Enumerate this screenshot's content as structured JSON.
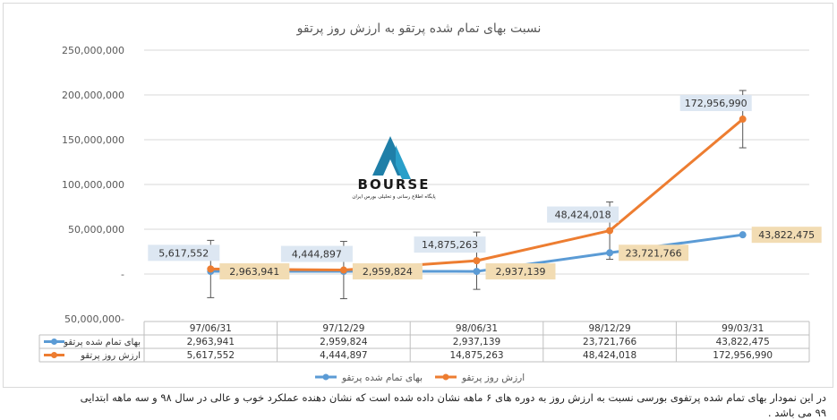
{
  "chart_data": {
    "type": "line",
    "title": "نسبت بهای تمام شده پرتقو به ارزش روز پرتقو",
    "categories": [
      "97/06/31",
      "97/12/29",
      "98/06/31",
      "98/12/29",
      "99/03/31"
    ],
    "series": [
      {
        "name": "بهای تمام شده پرتقو",
        "values": [
          2963941,
          2959824,
          2937139,
          23721766,
          43822475
        ],
        "value_labels": [
          "2,963,941",
          "2,959,824",
          "2,937,139",
          "23,721,766",
          "43,822,475"
        ],
        "color": "#5b9bd5"
      },
      {
        "name": "ارزش روز پرتقو",
        "values": [
          5617552,
          4444897,
          14875263,
          48424018,
          172956990
        ],
        "value_labels": [
          "5,617,552",
          "4,444,897",
          "14,875,263",
          "48,424,018",
          "172,956,990"
        ],
        "color": "#ed7d31"
      }
    ],
    "ylim": [
      -50000000,
      250000000
    ],
    "yticks": [
      250000000,
      200000000,
      150000000,
      100000000,
      50000000,
      0,
      -50000000
    ],
    "ytick_labels": [
      "250,000,000",
      "200,000,000",
      "150,000,000",
      "100,000,000",
      "50,000,000",
      "-",
      "50,000,000-"
    ],
    "grid": true,
    "legend_position": "bottom",
    "data_table": true,
    "error_bars": true
  },
  "logo": {
    "text": "BOURSE",
    "subtitle": "پایگاه اطلاع رسانی و تحلیلی بورس ایران",
    "color": "#1f7fa8"
  },
  "caption": {
    "line1": "در این نمودار بهای تمام شده پرتفوی بورسی نسبت به ارزش روز به دوره های ۶ ماهه نشان داده شده است که نشان دهنده عملکرد خوب و عالی در سال ۹۸ و سه ماهه ابتدایی",
    "line2": "۹۹ می باشد ."
  }
}
